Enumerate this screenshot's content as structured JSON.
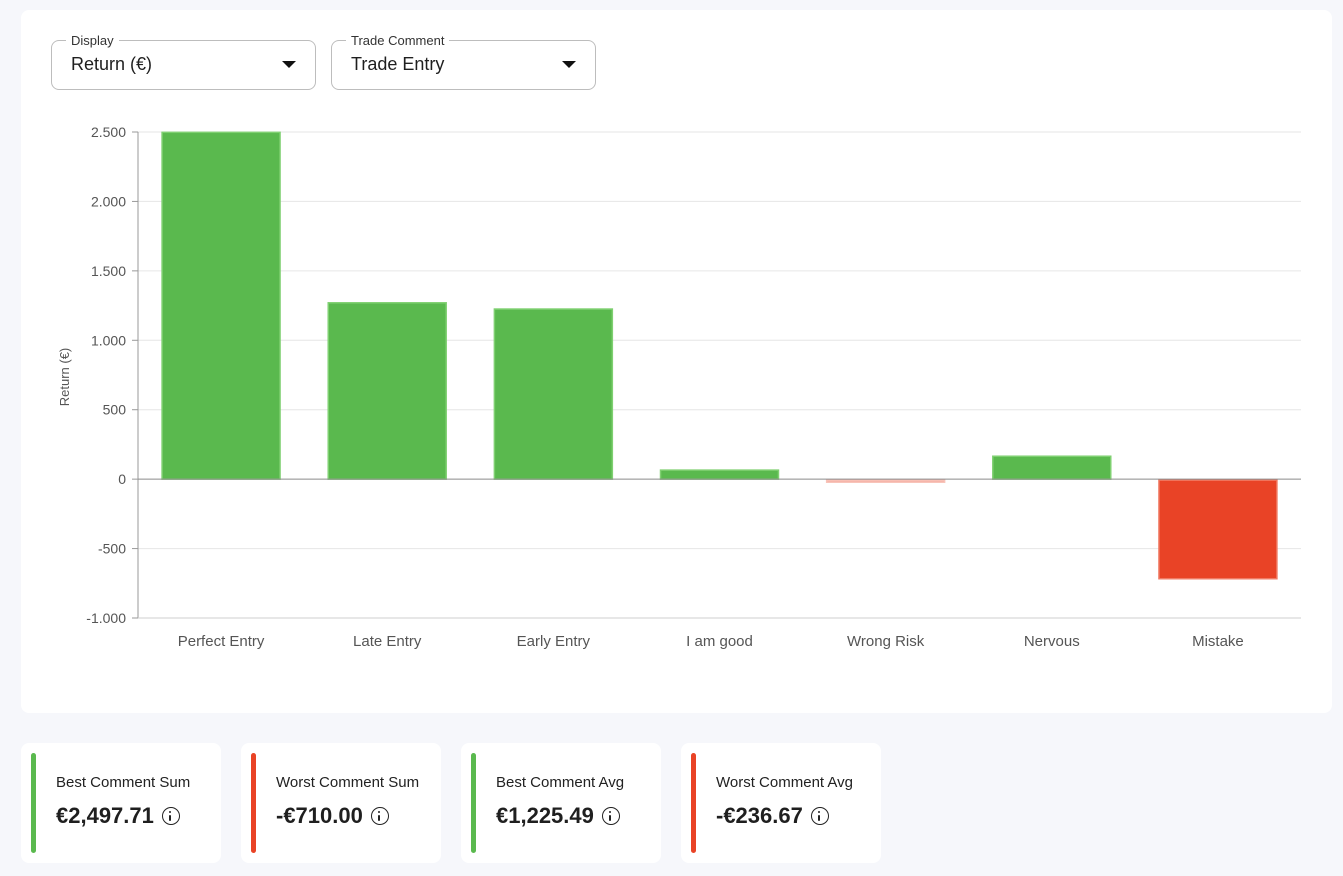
{
  "filters": {
    "display": {
      "label": "Display",
      "value": "Return (€)"
    },
    "comment": {
      "label": "Trade Comment",
      "value": "Trade Entry"
    }
  },
  "colors": {
    "positive": "#5ab94e",
    "negative": "#e94326",
    "accent_green": "#5ab94e",
    "accent_red": "#e94326"
  },
  "chart_data": {
    "type": "bar",
    "ylabel": "Return (€)",
    "xlabel": "",
    "ylim": [
      -1000,
      2500
    ],
    "yticks": [
      2500,
      2000,
      1500,
      1000,
      500,
      0,
      -500,
      -1000
    ],
    "ytick_labels": [
      "2.500",
      "2.000",
      "1.500",
      "1.000",
      "500",
      "0",
      "-500",
      "-1.000"
    ],
    "grid": true,
    "categories": [
      "Perfect Entry",
      "Late Entry",
      "Early Entry",
      "I am good",
      "Wrong Risk",
      "Nervous",
      "Mistake"
    ],
    "values": [
      2497.71,
      1270,
      1225,
      65,
      -15,
      165,
      -710
    ]
  },
  "stats": [
    {
      "label": "Best Comment Sum",
      "value": "€2,497.71",
      "accent": "green"
    },
    {
      "label": "Worst Comment Sum",
      "value": "-€710.00",
      "accent": "red"
    },
    {
      "label": "Best Comment Avg",
      "value": "€1,225.49",
      "accent": "green"
    },
    {
      "label": "Worst Comment Avg",
      "value": "-€236.67",
      "accent": "red"
    }
  ]
}
